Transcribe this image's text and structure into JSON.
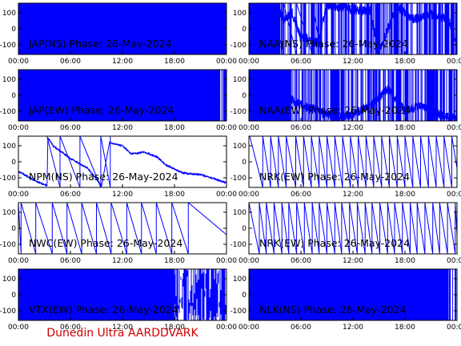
{
  "footer": "Dunedin Ultra AARDDVARK",
  "colors": {
    "trace": "#0000ff",
    "axes": "#000000",
    "footer": "#cc0000",
    "background": "#ffffff"
  },
  "chart_data": [
    {
      "type": "line",
      "title": "JAP(NS) Phase: 26-May-2024",
      "x_ticks": [
        "00:00",
        "06:00",
        "12:00",
        "18:00",
        "00:00"
      ],
      "y_ticks": [
        100,
        0,
        -100
      ],
      "ylim": [
        -160,
        160
      ],
      "series": [
        {
          "pattern": "saturated",
          "fill": 1.0,
          "wrap_slopes": [],
          "anchors": [
            [
              0,
              0
            ],
            [
              24,
              0
            ]
          ]
        }
      ]
    },
    {
      "type": "line",
      "title": "NAA(NS) Phase: 26-May-2024",
      "x_ticks": [
        "00:00",
        "06:00",
        "12:00",
        "18:00",
        "00:00"
      ],
      "y_ticks": [
        100,
        0,
        -100
      ],
      "ylim": [
        -160,
        160
      ],
      "series": [
        {
          "pattern": "mixed",
          "fill": 0.15,
          "wrap_slopes": [
            2.5,
            4,
            5.5,
            7.3,
            8.4
          ],
          "anchors": [
            [
              0,
              -60
            ],
            [
              2,
              -130
            ],
            [
              3,
              150
            ],
            [
              4,
              60
            ],
            [
              5,
              100
            ],
            [
              6,
              -50
            ],
            [
              8,
              -80
            ],
            [
              9,
              150
            ],
            [
              12,
              120
            ],
            [
              14,
              110
            ],
            [
              15,
              -150
            ],
            [
              17,
              140
            ],
            [
              19,
              60
            ],
            [
              21,
              90
            ],
            [
              23,
              60
            ],
            [
              24,
              -100
            ]
          ]
        }
      ]
    },
    {
      "type": "line",
      "title": "JAP(EW) Phase: 26-May-2024",
      "x_ticks": [
        "00:00",
        "06:00",
        "12:00",
        "18:00",
        "00:00"
      ],
      "y_ticks": [
        100,
        0,
        -100
      ],
      "ylim": [
        -160,
        160
      ],
      "series": [
        {
          "pattern": "saturated",
          "fill": 0.97,
          "wrap_slopes": [],
          "anchors": [
            [
              0,
              0
            ],
            [
              24,
              0
            ]
          ]
        }
      ]
    },
    {
      "type": "line",
      "title": "NAA(EW) Phase: 26-May-2024",
      "x_ticks": [
        "00:00",
        "06:00",
        "12:00",
        "18:00",
        "00:00"
      ],
      "y_ticks": [
        100,
        0,
        -100
      ],
      "ylim": [
        -160,
        160
      ],
      "series": [
        {
          "pattern": "mixed",
          "fill": 0.2,
          "wrap_slopes": [
            1.2
          ],
          "anchors": [
            [
              0,
              100
            ],
            [
              1,
              150
            ],
            [
              2,
              60
            ],
            [
              4,
              0
            ],
            [
              6,
              -60
            ],
            [
              8,
              -100
            ],
            [
              10,
              -140
            ],
            [
              12,
              -120
            ],
            [
              14,
              -60
            ],
            [
              16,
              40
            ],
            [
              18,
              -100
            ],
            [
              20,
              -60
            ],
            [
              22,
              -120
            ],
            [
              24,
              -150
            ]
          ]
        }
      ]
    },
    {
      "type": "line",
      "title": "NPM(NS) Phase: 26-May-2024",
      "x_ticks": [
        "00:00",
        "06:00",
        "12:00",
        "18:00",
        "00:00"
      ],
      "y_ticks": [
        100,
        0,
        -100
      ],
      "ylim": [
        -160,
        160
      ],
      "series": [
        {
          "pattern": "smooth",
          "fill": 0.0,
          "wrap_slopes": [
            4.8,
            7.1,
            9.5,
            10.6
          ],
          "anchors": [
            [
              0,
              -60
            ],
            [
              2,
              -120
            ],
            [
              3.3,
              -150
            ],
            [
              3.4,
              150
            ],
            [
              4,
              100
            ],
            [
              6,
              20
            ],
            [
              8,
              -40
            ],
            [
              9.6,
              -150
            ],
            [
              10.5,
              120
            ],
            [
              12,
              100
            ],
            [
              13,
              50
            ],
            [
              14.5,
              60
            ],
            [
              15.5,
              40
            ],
            [
              16,
              30
            ],
            [
              17,
              -20
            ],
            [
              19,
              -70
            ],
            [
              21,
              -80
            ],
            [
              24,
              -130
            ]
          ]
        }
      ]
    },
    {
      "type": "line",
      "title": "NRK(EW) Phase: 26-May-2024",
      "x_ticks": [
        "00:00",
        "06:00",
        "12:00",
        "18:00",
        "00:00"
      ],
      "y_ticks": [
        100,
        0,
        -100
      ],
      "ylim": [
        -160,
        160
      ],
      "series": [
        {
          "pattern": "wraps",
          "fill": 0.0,
          "wrap_slopes": [
            1.6,
            2.5,
            3.4,
            4.3,
            5.4,
            6.3,
            7.2,
            8.1,
            9.0,
            9.9,
            10.8,
            11.7,
            12.6,
            13.5,
            14.4,
            15.3,
            16.2,
            17.1,
            18.0,
            18.9,
            19.8,
            20.7,
            21.6,
            22.5,
            23.4
          ],
          "anchors": [
            [
              0,
              0
            ],
            [
              24,
              0
            ]
          ]
        }
      ]
    },
    {
      "type": "line",
      "title": "NWC(EW) Phase: 26-May-2024",
      "x_ticks": [
        "00:00",
        "06:00",
        "12:00",
        "18:00",
        "00:00"
      ],
      "y_ticks": [
        100,
        0,
        -100
      ],
      "ylim": [
        -160,
        160
      ],
      "series": [
        {
          "pattern": "wraps",
          "fill": 0.0,
          "wrap_slopes": [
            0.3,
            2.0,
            3.9,
            5.6,
            7.3,
            9.0,
            10.7,
            12.5,
            14.2,
            15.9,
            17.7,
            19.6
          ],
          "anchors": [
            [
              0,
              0
            ],
            [
              24,
              0
            ]
          ]
        }
      ]
    },
    {
      "type": "line",
      "title": "NRK(EW) Phase: 26-May-2024",
      "x_ticks": [
        "00:00",
        "06:00",
        "12:00",
        "18:00",
        "00:00"
      ],
      "y_ticks": [
        100,
        0,
        -100
      ],
      "ylim": [
        -160,
        160
      ],
      "series": [
        {
          "pattern": "wraps",
          "fill": 0.0,
          "wrap_slopes": [
            1.2,
            2.0,
            2.9,
            3.8,
            4.6,
            5.5,
            6.4,
            7.3,
            8.1,
            9.0,
            9.9,
            10.7,
            11.6,
            12.5,
            13.4,
            14.2,
            15.1,
            16.0,
            16.8,
            17.7,
            18.6,
            19.4,
            20.3,
            21.2,
            22.0,
            22.9,
            23.8
          ],
          "anchors": [
            [
              0,
              0
            ],
            [
              24,
              0
            ]
          ]
        }
      ]
    },
    {
      "type": "line",
      "title": "VTX(EW) Phase: 26-May-2024",
      "x_ticks": [
        "00:00",
        "06:00",
        "12:00",
        "18:00",
        "00:00"
      ],
      "y_ticks": [
        100,
        0,
        -100
      ],
      "ylim": [
        -160,
        160
      ],
      "series": [
        {
          "pattern": "noise",
          "fill": 0.75,
          "wrap_slopes": [],
          "anchors": [
            [
              0,
              0
            ],
            [
              24,
              0
            ]
          ]
        }
      ]
    },
    {
      "type": "line",
      "title": "NLK(NS) Phase: 26-May-2024",
      "x_ticks": [
        "00:00",
        "06:00",
        "12:00",
        "18:00",
        "00:00"
      ],
      "y_ticks": [
        100,
        0,
        -100
      ],
      "ylim": [
        -160,
        160
      ],
      "series": [
        {
          "pattern": "saturated",
          "fill": 0.96,
          "wrap_slopes": [],
          "anchors": [
            [
              0,
              0
            ],
            [
              24,
              0
            ]
          ]
        }
      ]
    }
  ]
}
